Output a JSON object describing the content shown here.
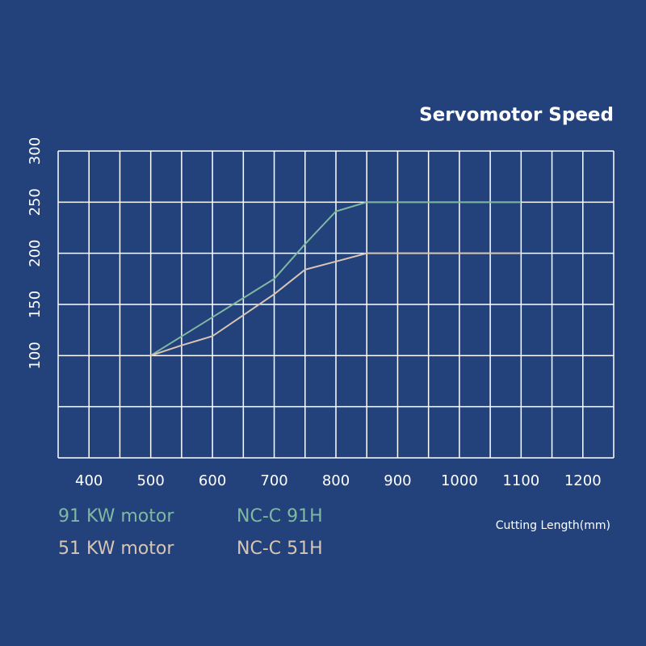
{
  "chart_data": {
    "type": "line",
    "title": "Servomotor Speed",
    "x_label": "Cutting Length(mm)",
    "xlim": [
      350,
      1250
    ],
    "xticks": [
      400,
      500,
      600,
      700,
      800,
      900,
      1000,
      1100,
      1200
    ],
    "xgrid_step": 50,
    "ylim": [
      0,
      300
    ],
    "yticks": [
      100,
      150,
      200,
      250,
      300
    ],
    "ygrid_step": 50,
    "grid": true,
    "series": [
      {
        "name": "NC-C 91H",
        "motor": "91 KW motor",
        "color": "#80b9a1",
        "x": [
          500,
          700,
          750,
          800,
          850,
          1100
        ],
        "values": [
          100,
          175,
          209,
          241,
          250,
          250
        ]
      },
      {
        "name": "NC-C 51H",
        "motor": "51 KW motor",
        "color": "#d8c5b3",
        "x": [
          500,
          550,
          600,
          700,
          750,
          800,
          850,
          1100
        ],
        "values": [
          100,
          110,
          119,
          160,
          184,
          192,
          200,
          200
        ]
      }
    ]
  }
}
